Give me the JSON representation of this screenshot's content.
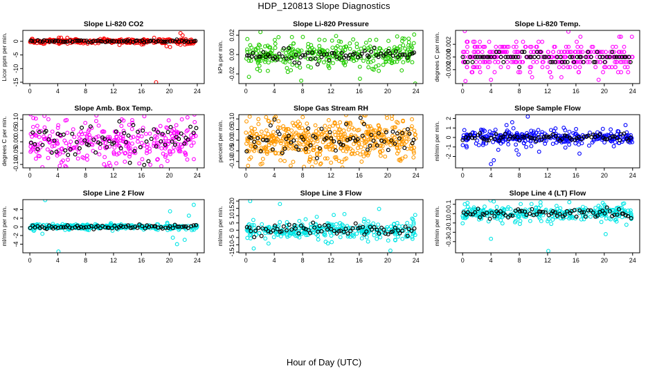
{
  "header": {
    "title": "HDP_120813  Slope Diagnostics"
  },
  "footer": {
    "xlabel": "Hour of Day (UTC)"
  },
  "chart_data": [
    {
      "type": "scatter",
      "title": "Slope Li-820 CO2",
      "ylabel": "Licor ppm per min.",
      "xlim": [
        -1,
        25
      ],
      "ylim": [
        -15.5,
        4
      ],
      "xticks": [
        "0",
        "4",
        "8",
        "12",
        "16",
        "20",
        "24"
      ],
      "yticks": [
        -15,
        -10,
        -5,
        0
      ],
      "ytick_labels": [
        "-15",
        "-10",
        "-5",
        "0"
      ],
      "color": "#ff0000",
      "spread": 0.4,
      "overlay_spread": 0.2,
      "outliers": [
        [
          18.1,
          -15.0
        ],
        [
          21.6,
          3.0
        ],
        [
          21.9,
          2.2
        ],
        [
          19.6,
          -1.8
        ],
        [
          20.1,
          -2.1
        ],
        [
          22.8,
          -0.9
        ]
      ]
    },
    {
      "type": "scatter",
      "title": "Slope Li-820 Pressure",
      "ylabel": "kPa per min.",
      "xlim": [
        -1,
        25
      ],
      "ylim": [
        -0.03,
        0.025
      ],
      "xticks": [
        "0",
        "4",
        "8",
        "12",
        "16",
        "20",
        "24"
      ],
      "yticks": [
        -0.02,
        0.0,
        0.02
      ],
      "ytick_labels": [
        "-0.02",
        "0.00",
        "0.02"
      ],
      "color": "#22cc00",
      "spread": 0.008,
      "overlay_spread": 0.003,
      "outliers": [
        [
          0.2,
          0.016
        ],
        [
          1.6,
          -0.015
        ],
        [
          7.8,
          -0.027
        ],
        [
          16.1,
          -0.025
        ],
        [
          23.9,
          -0.03
        ],
        [
          4.6,
          0.018
        ]
      ]
    },
    {
      "type": "scatter",
      "title": "Slope Li-820 Temp.",
      "ylabel": "degrees C per min.",
      "xlim": [
        -1,
        25
      ],
      "ylim": [
        -0.0042,
        0.0042
      ],
      "xticks": [
        "0",
        "4",
        "8",
        "12",
        "16",
        "20",
        "24"
      ],
      "yticks": [
        -0.002,
        0.0,
        0.002
      ],
      "ytick_labels": [
        "-0.002",
        "0.000",
        "0.002"
      ],
      "color": "#ff00ff",
      "spread": 0.0012,
      "overlay_spread": 0.0004,
      "quantized": 0.0008,
      "outliers": [
        [
          0.3,
          0.0041
        ],
        [
          0.7,
          0.0024
        ],
        [
          1.5,
          0.0024
        ],
        [
          0.4,
          -0.0038
        ],
        [
          4.0,
          -0.0036
        ],
        [
          19.2,
          -0.0036
        ]
      ]
    },
    {
      "type": "scatter",
      "title": "Slope Amb. Box Temp.",
      "ylabel": "degrees C per min.",
      "xlim": [
        -1,
        25
      ],
      "ylim": [
        -0.115,
        0.12
      ],
      "xticks": [
        "0",
        "4",
        "8",
        "12",
        "16",
        "20",
        "24"
      ],
      "yticks": [
        -0.1,
        -0.05,
        0.0,
        0.05,
        0.1
      ],
      "ytick_labels": [
        "-0.10",
        "-0.05",
        "0.00",
        "0.05",
        "0.10"
      ],
      "color": "#ff00ff",
      "spread": 0.05,
      "overlay_spread": 0.04,
      "outliers": [
        [
          0.5,
          0.105
        ],
        [
          1.8,
          -0.112
        ],
        [
          11.1,
          -0.11
        ],
        [
          12.4,
          -0.095
        ],
        [
          22.6,
          0.108
        ]
      ]
    },
    {
      "type": "scatter",
      "title": "Slope Gas Stream RH",
      "ylabel": "percent per min.",
      "xlim": [
        -1,
        25
      ],
      "ylim": [
        -0.13,
        0.12
      ],
      "xticks": [
        "0",
        "4",
        "8",
        "12",
        "16",
        "20",
        "24"
      ],
      "yticks": [
        -0.1,
        -0.05,
        0.0,
        0.05,
        0.1
      ],
      "ytick_labels": [
        "-0.10",
        "-0.05",
        "0.00",
        "0.05",
        "0.10"
      ],
      "color": "#ff9900",
      "spread": 0.055,
      "overlay_spread": 0.04,
      "dense": true,
      "outliers": [
        [
          0.3,
          -0.12
        ],
        [
          2.3,
          -0.11
        ],
        [
          8.2,
          -0.125
        ],
        [
          4.2,
          0.11
        ],
        [
          20.6,
          0.115
        ]
      ]
    },
    {
      "type": "scatter",
      "title": "Slope Sample Flow",
      "ylabel": "ml/min per min.",
      "xlim": [
        -1,
        25
      ],
      "ylim": [
        -3.2,
        2.4
      ],
      "xticks": [
        "0",
        "4",
        "8",
        "12",
        "16",
        "20",
        "24"
      ],
      "yticks": [
        -2,
        -1,
        0,
        1,
        2
      ],
      "ytick_labels": [
        "-2",
        "-1",
        "0",
        "1",
        "2"
      ],
      "color": "#0000ff",
      "spread": 0.35,
      "overlay_spread": 0.2,
      "outliers": [
        [
          4.0,
          -2.8
        ],
        [
          4.4,
          -2.4
        ],
        [
          6.2,
          1.3
        ],
        [
          7.0,
          1.6
        ],
        [
          9.2,
          2.2
        ],
        [
          7.9,
          -1.8
        ],
        [
          10.8,
          -1.5
        ],
        [
          16.5,
          -1.7
        ],
        [
          23.0,
          1.3
        ],
        [
          19.8,
          0.9
        ]
      ]
    },
    {
      "type": "scatter",
      "title": "Slope Line 2 Flow",
      "ylabel": "ml/min per min.",
      "xlim": [
        -1,
        25
      ],
      "ylim": [
        -6,
        6.3
      ],
      "xticks": [
        "0",
        "4",
        "8",
        "12",
        "16",
        "20",
        "24"
      ],
      "yticks": [
        -4,
        -2,
        0,
        2,
        4
      ],
      "ytick_labels": [
        "-4",
        "-2",
        "0",
        "2",
        "4"
      ],
      "color": "#00e5e5",
      "spread": 0.3,
      "overlay_spread": 0.2,
      "outliers": [
        [
          2.2,
          6.2
        ],
        [
          1.8,
          -1.6
        ],
        [
          4.1,
          -5.7
        ],
        [
          20.1,
          3.6
        ],
        [
          22.2,
          -3.0
        ],
        [
          21.1,
          -4.0
        ],
        [
          23.5,
          5.1
        ],
        [
          22.8,
          2.6
        ],
        [
          20.5,
          -2.5
        ]
      ]
    },
    {
      "type": "scatter",
      "title": "Slope Line 3 Flow",
      "ylabel": "ml/min per min.",
      "xlim": [
        -1,
        25
      ],
      "ylim": [
        -15.5,
        21
      ],
      "xticks": [
        "0",
        "4",
        "8",
        "12",
        "16",
        "20",
        "24"
      ],
      "yticks": [
        -15,
        -10,
        -5,
        0,
        5,
        10,
        15,
        20
      ],
      "ytick_labels": [
        "-15",
        "-10",
        "-5",
        "0",
        "5",
        "10",
        "15",
        "20"
      ],
      "color": "#00e5e5",
      "spread": 3.0,
      "overlay_spread": 2.0,
      "outliers": [
        [
          0.6,
          20.0
        ],
        [
          4.8,
          18.0
        ],
        [
          1.1,
          -12.5
        ],
        [
          20.4,
          -14.0
        ],
        [
          18.8,
          14.6
        ],
        [
          23.9,
          10.5
        ]
      ]
    },
    {
      "type": "scatter",
      "title": "Slope Line 4 (LT) Flow",
      "ylabel": "ml/min per min.",
      "xlim": [
        -1,
        25
      ],
      "ylim": [
        -0.42,
        0.15
      ],
      "xticks": [
        "0",
        "4",
        "8",
        "12",
        "16",
        "20",
        "24"
      ],
      "yticks": [
        -0.3,
        -0.2,
        -0.1,
        0.0,
        0.1
      ],
      "ytick_labels": [
        "-0.3",
        "-0.2",
        "-0.1",
        "0.0",
        "0.1"
      ],
      "color": "#00e5e5",
      "spread": 0.04,
      "overlay_spread": 0.025,
      "center": 0.005,
      "outliers": [
        [
          4.0,
          -0.27
        ],
        [
          12.1,
          -0.4
        ],
        [
          20.2,
          -0.22
        ],
        [
          4.4,
          0.13
        ],
        [
          22.8,
          0.11
        ],
        [
          20.0,
          0.095
        ]
      ]
    }
  ]
}
